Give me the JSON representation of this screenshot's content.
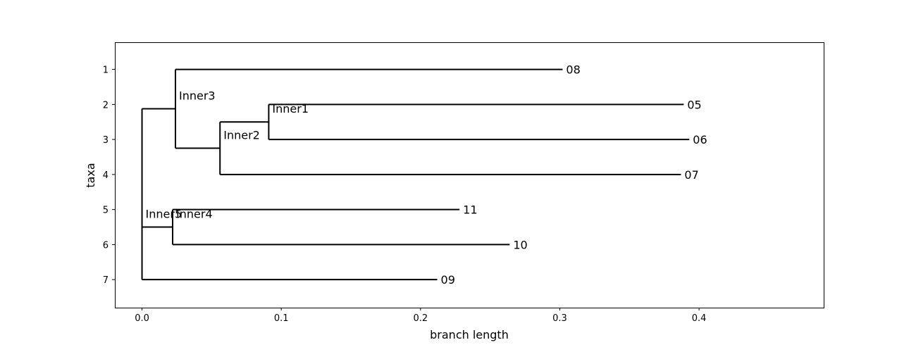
{
  "chart_data": {
    "type": "dendrogram",
    "xlabel": "branch length",
    "ylabel": "taxa",
    "xlim": [
      -0.0195,
      0.4895
    ],
    "ylim": [
      0.225,
      7.8
    ],
    "x_ticks": [
      0.0,
      0.1,
      0.2,
      0.3,
      0.4
    ],
    "x_tick_labels": [
      "0.0",
      "0.1",
      "0.2",
      "0.3",
      "0.4"
    ],
    "y_ticks": [
      1,
      2,
      3,
      4,
      5,
      6,
      7
    ],
    "y_tick_labels": [
      "1",
      "2",
      "3",
      "4",
      "5",
      "6",
      "7"
    ],
    "y_inverted": true,
    "grid": false,
    "nodes": [
      {
        "id": "Inner5",
        "label": "Inner5",
        "parent": null,
        "x": 0.0,
        "y": 5.5
      },
      {
        "id": "Inner3",
        "label": "Inner3",
        "parent": "Inner5",
        "x": 0.024,
        "y": 2.125
      },
      {
        "id": "Inner2",
        "label": "Inner2",
        "parent": "Inner3",
        "x": 0.056,
        "y": 3.25
      },
      {
        "id": "Inner1",
        "label": "Inner1",
        "parent": "Inner2",
        "x": 0.091,
        "y": 2.5
      },
      {
        "id": "Inner4",
        "label": "Inner4",
        "parent": "Inner5",
        "x": 0.022,
        "y": 5.5
      },
      {
        "id": "08",
        "label": "08",
        "parent": "Inner3",
        "x": 0.302,
        "y": 1
      },
      {
        "id": "05",
        "label": "05",
        "parent": "Inner1",
        "x": 0.389,
        "y": 2
      },
      {
        "id": "06",
        "label": "06",
        "parent": "Inner1",
        "x": 0.393,
        "y": 3
      },
      {
        "id": "07",
        "label": "07",
        "parent": "Inner2",
        "x": 0.387,
        "y": 4
      },
      {
        "id": "11",
        "label": "11",
        "parent": "Inner4",
        "x": 0.228,
        "y": 5
      },
      {
        "id": "10",
        "label": "10",
        "parent": "Inner4",
        "x": 0.264,
        "y": 6
      },
      {
        "id": "09",
        "label": "09",
        "parent": "Inner5",
        "x": 0.212,
        "y": 7
      }
    ]
  }
}
